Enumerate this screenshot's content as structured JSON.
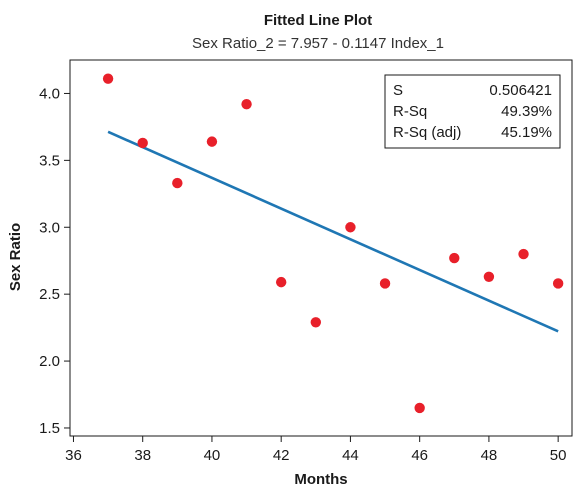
{
  "chart_data": {
    "type": "scatter",
    "title": "Fitted Line Plot",
    "subtitle": "Sex Ratio_2 = 7.957 - 0.1147 Index_1",
    "xlabel": "Months",
    "ylabel": "Sex Ratio",
    "xlim": [
      35.9,
      50.4
    ],
    "ylim": [
      1.44,
      4.25
    ],
    "xticks": [
      36,
      38,
      40,
      42,
      44,
      46,
      48,
      50
    ],
    "yticks": [
      1.5,
      2.0,
      2.5,
      3.0,
      3.5,
      4.0
    ],
    "ytick_labels": [
      "1.5",
      "2.0",
      "2.5",
      "3.0",
      "3.5",
      "4.0"
    ],
    "points": [
      {
        "x": 37,
        "y": 4.11
      },
      {
        "x": 38,
        "y": 3.63
      },
      {
        "x": 39,
        "y": 3.33
      },
      {
        "x": 40,
        "y": 3.64
      },
      {
        "x": 41,
        "y": 3.92
      },
      {
        "x": 42,
        "y": 2.59
      },
      {
        "x": 43,
        "y": 2.29
      },
      {
        "x": 44,
        "y": 3.0
      },
      {
        "x": 45,
        "y": 2.58
      },
      {
        "x": 46,
        "y": 1.65
      },
      {
        "x": 47,
        "y": 2.77
      },
      {
        "x": 48,
        "y": 2.63
      },
      {
        "x": 49,
        "y": 2.8
      },
      {
        "x": 50,
        "y": 2.58
      }
    ],
    "fit_line": {
      "intercept": 7.957,
      "slope": -0.1147,
      "x_range": [
        37,
        50
      ]
    },
    "stats": [
      {
        "label": "S",
        "value": "0.506421"
      },
      {
        "label": "R-Sq",
        "value": "49.39%"
      },
      {
        "label": "R-Sq (adj)",
        "value": "45.19%"
      }
    ],
    "stats_placement": "top-right",
    "grid": false,
    "colors": {
      "points": "#e8202a",
      "line": "#1f77b4",
      "axis": "#1a1a1a"
    }
  }
}
